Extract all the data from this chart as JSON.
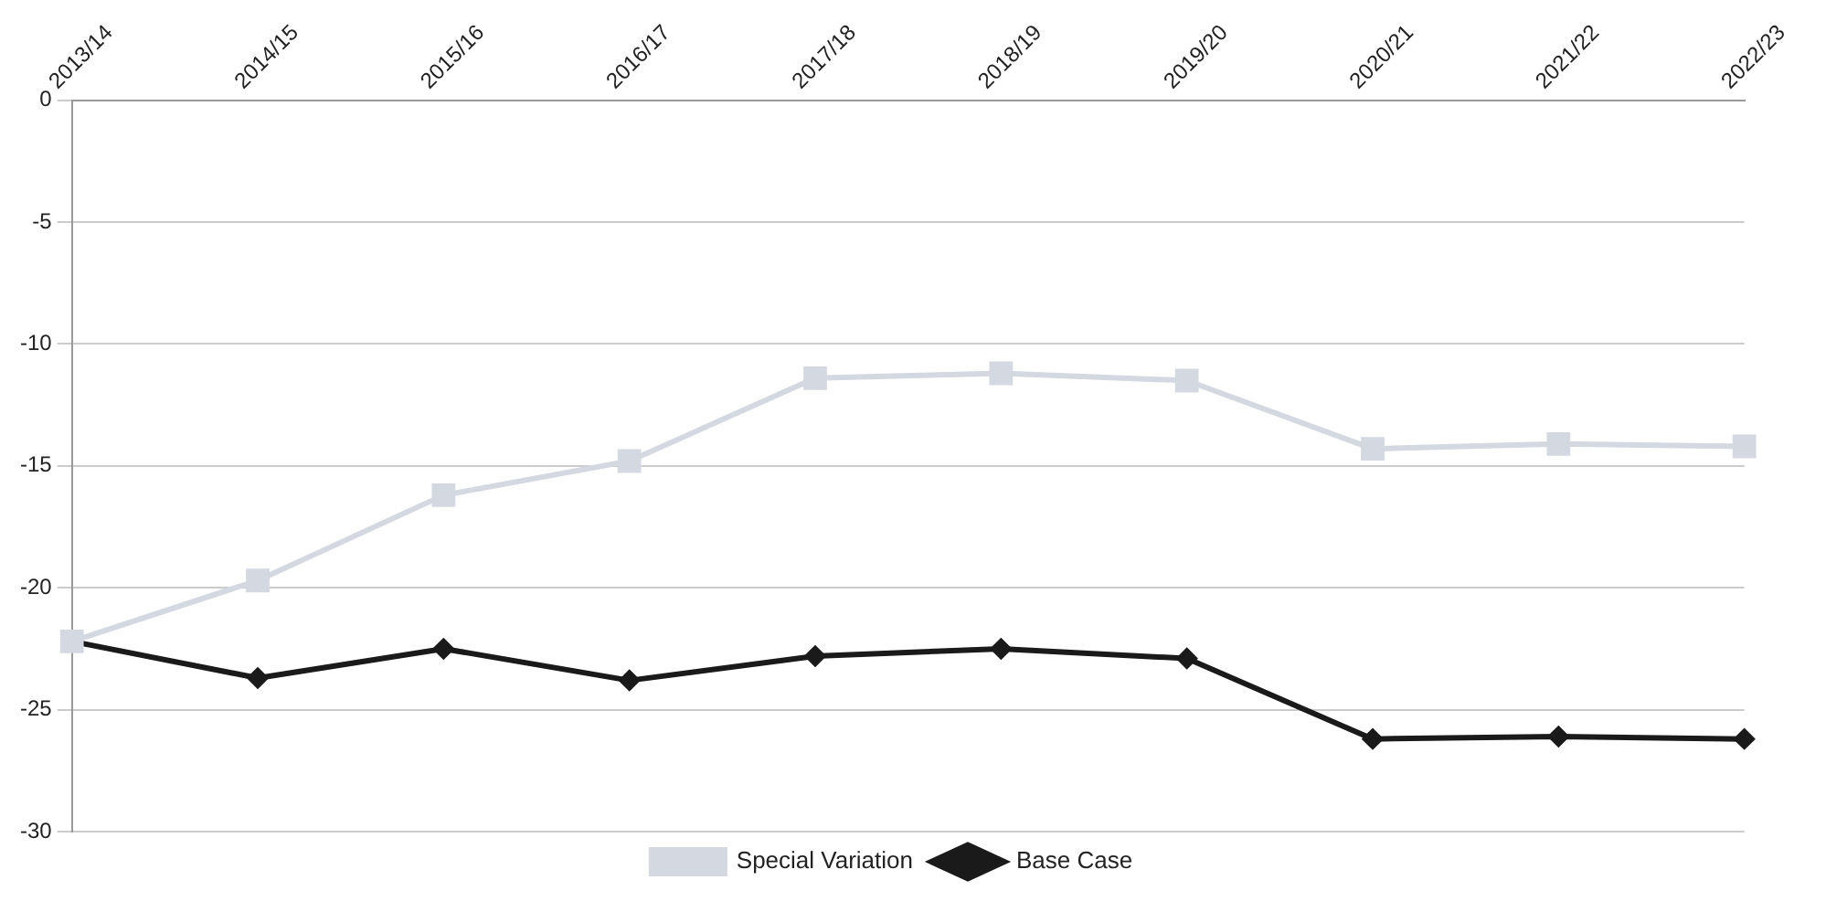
{
  "chart_data": {
    "type": "line",
    "categories": [
      "2013/14",
      "2014/15",
      "2015/16",
      "2016/17",
      "2017/18",
      "2018/19",
      "2019/20",
      "2020/21",
      "2021/22",
      "2022/23"
    ],
    "series": [
      {
        "name": "Base Case",
        "color": "#1a1a1a",
        "marker": "diamond",
        "values": [
          -22.2,
          -23.7,
          -22.5,
          -23.8,
          -22.8,
          -22.5,
          -22.9,
          -26.2,
          -26.1,
          -26.2
        ]
      },
      {
        "name": "Special Variation",
        "color": "#d4d8e0",
        "marker": "square",
        "values": [
          -22.2,
          -19.7,
          -16.2,
          -14.8,
          -11.4,
          -11.2,
          -11.5,
          -14.3,
          -14.1,
          -14.2
        ]
      }
    ],
    "ylim": [
      -30,
      0
    ],
    "yticks": [
      -30,
      -25,
      -20,
      -15,
      -10,
      -5,
      0
    ],
    "grid": "y",
    "legend": "bottom",
    "line_style": "solid"
  }
}
